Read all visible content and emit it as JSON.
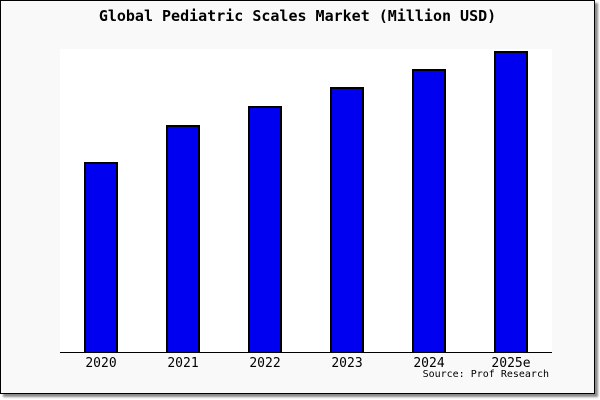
{
  "chart_data": {
    "type": "bar",
    "title": "Global Pediatric Scales Market (Million USD)",
    "categories": [
      "2020",
      "2021",
      "2022",
      "2023",
      "2024",
      "2025e"
    ],
    "values": [
      63.1,
      75.4,
      81.7,
      88.2,
      94.0,
      100
    ],
    "values_unit": "relative scale, tallest bar (2025e) = 100; no y-axis tick values are shown in the chart",
    "xlabel": "",
    "ylabel": "",
    "grid": false,
    "legend": false,
    "colors": {
      "bar_fill": "#0000f0",
      "bar_edge": "#000000",
      "plot_background": "#ffffff",
      "canvas_background": "#f9f9f9",
      "axis_color": "#000000"
    },
    "source": "Source: Prof Research"
  }
}
